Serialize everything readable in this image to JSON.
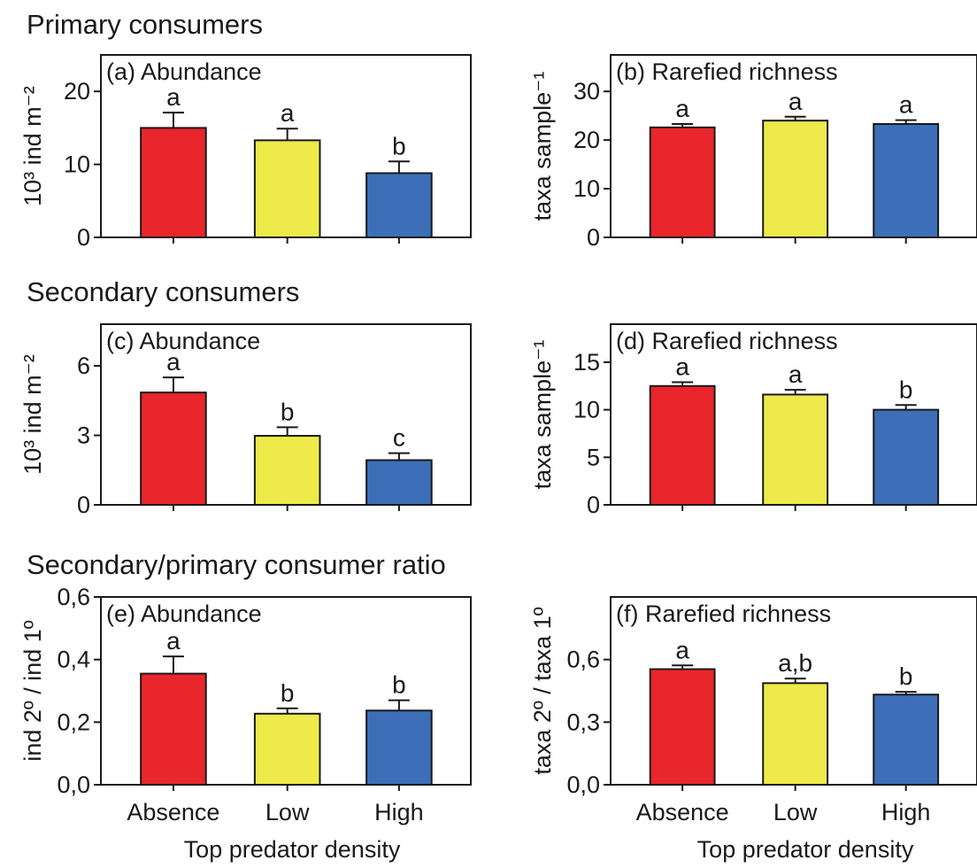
{
  "sections": [
    {
      "title": "Primary consumers"
    },
    {
      "title": "Secondary consumers"
    },
    {
      "title": "Secondary/primary consumer ratio"
    }
  ],
  "x_axis_title": "Top predator density",
  "colors": {
    "Absence": "#e8262b",
    "Low": "#eeea4a",
    "High": "#3c6fb8"
  },
  "chart_data": [
    {
      "type": "bar",
      "panel_label": "(a) Abundance",
      "categories": [
        "Absence",
        "Low",
        "High"
      ],
      "values": [
        15.0,
        13.3,
        8.8
      ],
      "errors": [
        2.1,
        1.6,
        1.6
      ],
      "significance": [
        "a",
        "a",
        "b"
      ],
      "ylabel": "10³ ind m⁻²",
      "ylim": [
        0,
        25
      ],
      "yticks": [
        0,
        10,
        20
      ],
      "ytick_labels": [
        "0",
        "10",
        "20"
      ]
    },
    {
      "type": "bar",
      "panel_label": "(b) Rarefied richness",
      "categories": [
        "Absence",
        "Low",
        "High"
      ],
      "values": [
        22.6,
        24.0,
        23.3
      ],
      "errors": [
        0.7,
        0.8,
        0.8
      ],
      "significance": [
        "a",
        "a",
        "a"
      ],
      "ylabel": "taxa sample⁻¹",
      "ylim": [
        0,
        37.5
      ],
      "yticks": [
        0,
        10,
        20,
        30
      ],
      "ytick_labels": [
        "0",
        "10",
        "20",
        "30"
      ]
    },
    {
      "type": "bar",
      "panel_label": "(c) Abundance",
      "categories": [
        "Absence",
        "Low",
        "High"
      ],
      "values": [
        4.85,
        2.98,
        1.93
      ],
      "errors": [
        0.65,
        0.37,
        0.3
      ],
      "significance": [
        "a",
        "b",
        "c"
      ],
      "ylabel": "10³ ind m⁻²",
      "ylim": [
        0,
        7.8
      ],
      "yticks": [
        0,
        3,
        6
      ],
      "ytick_labels": [
        "0",
        "3",
        "6"
      ]
    },
    {
      "type": "bar",
      "panel_label": "(d) Rarefied richness",
      "categories": [
        "Absence",
        "Low",
        "High"
      ],
      "values": [
        12.5,
        11.6,
        10.0
      ],
      "errors": [
        0.4,
        0.5,
        0.5
      ],
      "significance": [
        "a",
        "a",
        "b"
      ],
      "ylabel": "taxa sample⁻¹",
      "ylim": [
        0,
        19
      ],
      "yticks": [
        0,
        5,
        10,
        15
      ],
      "ytick_labels": [
        "0",
        "5",
        "10",
        "15"
      ]
    },
    {
      "type": "bar",
      "panel_label": "(e) Abundance",
      "categories": [
        "Absence",
        "Low",
        "High"
      ],
      "values": [
        0.355,
        0.227,
        0.237
      ],
      "errors": [
        0.055,
        0.017,
        0.033
      ],
      "significance": [
        "a",
        "b",
        "b"
      ],
      "ylabel": "ind 2º / ind 1º",
      "ylim": [
        0,
        0.6
      ],
      "yticks": [
        0,
        0.2,
        0.4,
        0.6
      ],
      "ytick_labels": [
        "0,0",
        "0,2",
        "0,4",
        "0,6"
      ],
      "xlabel": "Top predator density"
    },
    {
      "type": "bar",
      "panel_label": "(f) Rarefied richness",
      "categories": [
        "Absence",
        "Low",
        "High"
      ],
      "values": [
        0.554,
        0.487,
        0.432
      ],
      "errors": [
        0.018,
        0.022,
        0.013
      ],
      "significance": [
        "a",
        "a,b",
        "b"
      ],
      "ylabel": "taxa 2º / taxa 1º",
      "ylim": [
        0,
        0.9
      ],
      "yticks": [
        0,
        0.3,
        0.6
      ],
      "ytick_labels": [
        "0,0",
        "0,3",
        "0,6"
      ],
      "xlabel": "Top predator density"
    }
  ]
}
